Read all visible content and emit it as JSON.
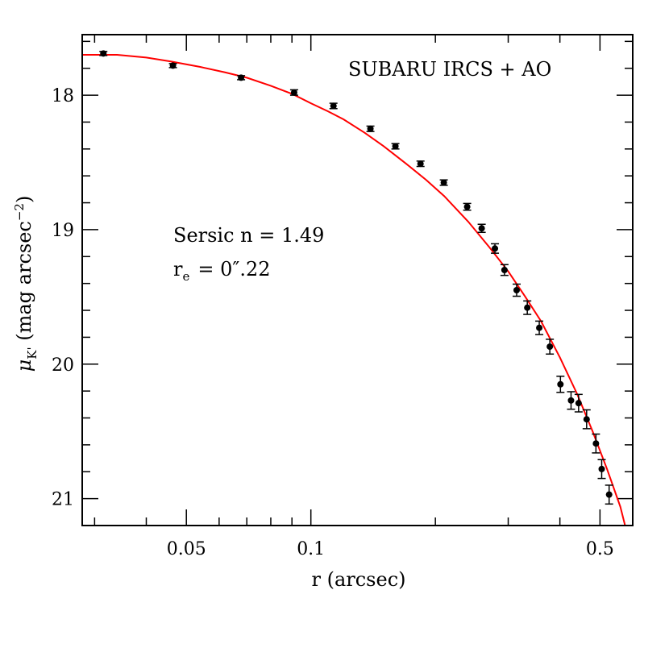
{
  "chart_data": {
    "type": "scatter",
    "title": "",
    "xlabel": "r (arcsec)",
    "ylabel": {
      "base": "μ",
      "sub": "K'",
      "rest": " (mag arcsec",
      "sup": "−2",
      "close": ")"
    },
    "x_scale": "log",
    "xlim": [
      0.028,
      0.6
    ],
    "ylim": [
      21.2,
      17.55
    ],
    "y_inverted": true,
    "x_ticks": [
      {
        "value": 0.05,
        "label": "0.05"
      },
      {
        "value": 0.1,
        "label": "0.1"
      },
      {
        "value": 0.5,
        "label": "0.5"
      }
    ],
    "y_ticks": [
      {
        "value": 18,
        "label": "18"
      },
      {
        "value": 19,
        "label": "19"
      },
      {
        "value": 20,
        "label": "20"
      },
      {
        "value": 21,
        "label": "21"
      }
    ],
    "annotations": {
      "instrument": "SUBARU IRCS + AO",
      "sersic": "Sersic n = 1.49",
      "re_symbol": "r",
      "re_sub": "e",
      "re_value": "= 0″.22"
    },
    "data_points": [
      {
        "x": 0.0315,
        "y": 17.69,
        "err": 0.015
      },
      {
        "x": 0.0464,
        "y": 17.78,
        "err": 0.015
      },
      {
        "x": 0.0678,
        "y": 17.87,
        "err": 0.015
      },
      {
        "x": 0.0911,
        "y": 17.98,
        "err": 0.02
      },
      {
        "x": 0.1134,
        "y": 18.08,
        "err": 0.02
      },
      {
        "x": 0.1393,
        "y": 18.25,
        "err": 0.02
      },
      {
        "x": 0.1601,
        "y": 18.38,
        "err": 0.02
      },
      {
        "x": 0.1841,
        "y": 18.51,
        "err": 0.02
      },
      {
        "x": 0.2096,
        "y": 18.65,
        "err": 0.02
      },
      {
        "x": 0.2387,
        "y": 18.83,
        "err": 0.025
      },
      {
        "x": 0.2588,
        "y": 18.99,
        "err": 0.03
      },
      {
        "x": 0.2786,
        "y": 19.14,
        "err": 0.035
      },
      {
        "x": 0.2938,
        "y": 19.3,
        "err": 0.04
      },
      {
        "x": 0.3144,
        "y": 19.45,
        "err": 0.045
      },
      {
        "x": 0.3336,
        "y": 19.58,
        "err": 0.05
      },
      {
        "x": 0.3566,
        "y": 19.73,
        "err": 0.05
      },
      {
        "x": 0.3782,
        "y": 19.87,
        "err": 0.055
      },
      {
        "x": 0.4012,
        "y": 20.15,
        "err": 0.06
      },
      {
        "x": 0.4256,
        "y": 20.27,
        "err": 0.065
      },
      {
        "x": 0.4439,
        "y": 20.29,
        "err": 0.065
      },
      {
        "x": 0.4642,
        "y": 20.41,
        "err": 0.07
      },
      {
        "x": 0.4889,
        "y": 20.59,
        "err": 0.07
      },
      {
        "x": 0.5048,
        "y": 20.78,
        "err": 0.07
      },
      {
        "x": 0.5261,
        "y": 20.97,
        "err": 0.07
      }
    ],
    "model_curve": {
      "name": "",
      "x": [
        0.028,
        0.034,
        0.04,
        0.046,
        0.054,
        0.062,
        0.07,
        0.08,
        0.09,
        0.1,
        0.11,
        0.12,
        0.135,
        0.15,
        0.17,
        0.19,
        0.21,
        0.24,
        0.27,
        0.3,
        0.33,
        0.36,
        0.4,
        0.44,
        0.48,
        0.52,
        0.56,
        0.575
      ],
      "y": [
        17.7,
        17.7,
        17.72,
        17.75,
        17.79,
        17.83,
        17.87,
        17.93,
        17.99,
        18.06,
        18.12,
        18.18,
        18.28,
        18.38,
        18.51,
        18.63,
        18.75,
        18.94,
        19.13,
        19.31,
        19.5,
        19.68,
        19.95,
        20.22,
        20.5,
        20.78,
        21.06,
        21.2
      ]
    },
    "colors": {
      "model_curve": "#ff0000",
      "points": "#000000",
      "axes": "#000000"
    },
    "grid": false,
    "legend": "none"
  }
}
